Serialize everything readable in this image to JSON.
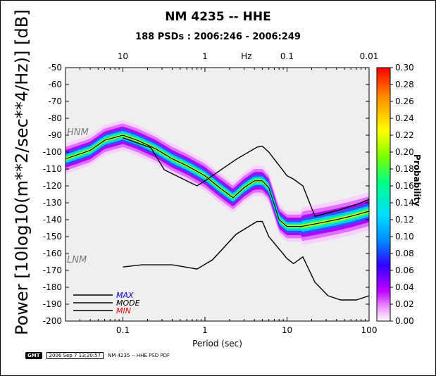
{
  "title": "NM 4235 -- HHE",
  "subtitle": "188 PSDs : 2006:246 - 2006:249",
  "footer": {
    "logo": "GMT",
    "timestamp": "2006 Sep  7 13:20:57",
    "caption": "NM 4235 -- HHE PSD PDF"
  },
  "chart_data": {
    "type": "heatmap",
    "title": "NM 4235 -- HHE",
    "subtitle": "188 PSDs : 2006:246 - 2006:249",
    "xlabel": "Period (sec)",
    "ylabel": "Power [10log10(m**2/sec**4/Hz)] [dB]",
    "x_scale": "log",
    "xlim": [
      0.02,
      100
    ],
    "ylim": [
      -200,
      -50
    ],
    "x_ticks": [
      "0.1",
      "1",
      "10",
      "100"
    ],
    "x_tick_values": [
      0.1,
      1,
      10,
      100
    ],
    "top_axis_label": "Hz",
    "top_ticks": [
      "10",
      "1",
      "0.1",
      "0.01"
    ],
    "top_tick_period_values": [
      0.1,
      1,
      10,
      100
    ],
    "y_ticks": [
      -50,
      -60,
      -70,
      -80,
      -90,
      -100,
      -110,
      -120,
      -130,
      -140,
      -150,
      -160,
      -170,
      -180,
      -190,
      -200
    ],
    "colorbar": {
      "label": "Probability",
      "range": [
        0,
        0.3
      ],
      "ticks": [
        "0.30",
        "0.28",
        "0.26",
        "0.24",
        "0.22",
        "0.20",
        "0.18",
        "0.16",
        "0.14",
        "0.12",
        "0.10",
        "0.08",
        "0.06",
        "0.04",
        "0.02",
        "0.00"
      ]
    },
    "model_labels": [
      "HNM",
      "LNM"
    ],
    "legend": [
      {
        "label": "MAX",
        "color": "#0000cc"
      },
      {
        "label": "MODE",
        "color": "#000000"
      },
      {
        "label": "MIN",
        "color": "#dd0000"
      }
    ],
    "series": [
      {
        "name": "MODE",
        "x": [
          0.02,
          0.04,
          0.06,
          0.1,
          0.15,
          0.25,
          0.4,
          0.6,
          1.0,
          1.5,
          2.2,
          3.0,
          4.0,
          5.0,
          6.0,
          7.0,
          8.0,
          10,
          15,
          25,
          40,
          60,
          100
        ],
        "y": [
          -104,
          -99,
          -93,
          -90,
          -93,
          -98,
          -104,
          -108,
          -114,
          -121,
          -127,
          -121,
          -117,
          -117,
          -121,
          -131,
          -140,
          -144,
          -144,
          -142,
          -140,
          -138,
          -135
        ]
      },
      {
        "name": "HNM",
        "x": [
          0.1,
          0.22,
          0.32,
          0.8,
          1.0,
          2.4,
          4.3,
          5.0,
          6.0,
          10,
          12,
          15.6,
          21.9,
          31.6,
          45,
          70,
          100
        ],
        "y": [
          -91.5,
          -97.4,
          -110.5,
          -120,
          -117,
          -104.3,
          -97.1,
          -96.5,
          -100,
          -114,
          -116,
          -120,
          -138,
          -136,
          -134,
          -131,
          -128
        ]
      },
      {
        "name": "LNM",
        "x": [
          0.1,
          0.17,
          0.4,
          0.8,
          1.24,
          2.4,
          4.3,
          5.0,
          6.0,
          10,
          12,
          15.6,
          21.9,
          31.6,
          45,
          70,
          100
        ],
        "y": [
          -168,
          -166.7,
          -166.7,
          -169.2,
          -163.7,
          -148.6,
          -141.1,
          -141,
          -150,
          -163,
          -166,
          -162,
          -177,
          -185,
          -187.5,
          -187.5,
          -185
        ]
      }
    ]
  }
}
